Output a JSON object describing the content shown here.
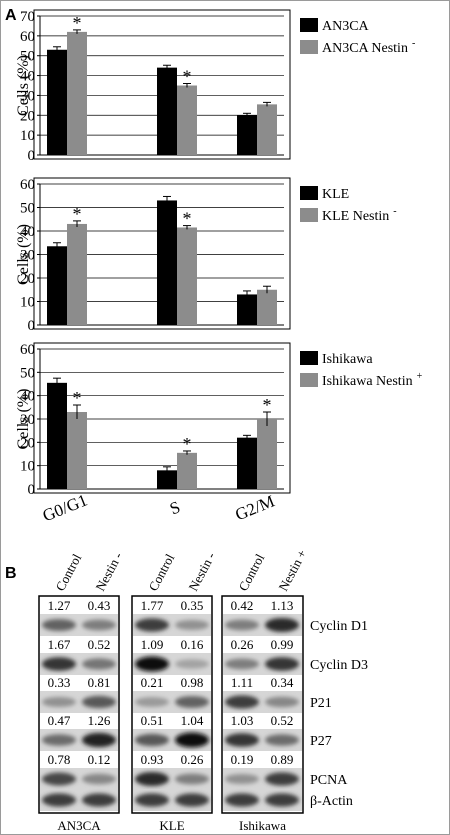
{
  "panel_labels": {
    "a": "A",
    "b": "B"
  },
  "colors": {
    "control": "#000000",
    "modified": "#8c8c8c",
    "band": "#3a3a3a",
    "grid": "#000000"
  },
  "chart_data": [
    {
      "type": "bar",
      "categories": [
        "G0/G1",
        "S",
        "G2/M"
      ],
      "ylabel": "Cells (%)",
      "ylim": [
        0,
        70
      ],
      "yticks": [
        0,
        10,
        20,
        30,
        40,
        50,
        60,
        70
      ],
      "grid": true,
      "legend": "right",
      "series": [
        {
          "name": "AN3CA",
          "values": [
            53,
            44,
            20
          ],
          "errors": [
            1.5,
            1.2,
            1.0
          ],
          "star": [
            false,
            false,
            false
          ]
        },
        {
          "name": "AN3CA Nestin",
          "sup": "-",
          "values": [
            62,
            35,
            25.5
          ],
          "errors": [
            1.0,
            1.0,
            1.0
          ],
          "star": [
            true,
            true,
            false
          ]
        }
      ]
    },
    {
      "type": "bar",
      "categories": [
        "G0/G1",
        "S",
        "G2/M"
      ],
      "ylabel": "Cells (%)",
      "ylim": [
        0,
        60
      ],
      "yticks": [
        0,
        10,
        20,
        30,
        40,
        50,
        60
      ],
      "grid": true,
      "legend": "right",
      "series": [
        {
          "name": "KLE",
          "values": [
            33.5,
            53,
            13
          ],
          "errors": [
            1.5,
            1.7,
            1.5
          ],
          "star": [
            false,
            false,
            false
          ]
        },
        {
          "name": "KLE Nestin",
          "sup": "-",
          "values": [
            43,
            41.5,
            15
          ],
          "errors": [
            1.3,
            0.8,
            1.5
          ],
          "star": [
            true,
            true,
            false
          ]
        }
      ]
    },
    {
      "type": "bar",
      "categories": [
        "G0/G1",
        "S",
        "G2/M"
      ],
      "ylabel": "Cells (%)",
      "ylim": [
        0,
        60
      ],
      "yticks": [
        0,
        10,
        20,
        30,
        40,
        50,
        60
      ],
      "grid": true,
      "legend": "right",
      "series": [
        {
          "name": "Ishikawa",
          "values": [
            45.5,
            8,
            22
          ],
          "errors": [
            2.0,
            1.5,
            1.0
          ],
          "star": [
            false,
            false,
            false
          ]
        },
        {
          "name": "Ishikawa Nestin",
          "sup": "+",
          "values": [
            33,
            15.5,
            30
          ],
          "errors": [
            3.0,
            0.8,
            3.0
          ],
          "star": [
            true,
            true,
            true
          ]
        }
      ]
    }
  ],
  "blot": {
    "columns": [
      "Control",
      "Nestin -",
      "Control",
      "Nestin -",
      "Control",
      "Nestin +"
    ],
    "cell_lines": [
      "AN3CA",
      "KLE",
      "Ishikawa"
    ],
    "proteins": [
      "Cyclin D1",
      "Cyclin D3",
      "P21",
      "P27",
      "PCNA",
      "β-Actin"
    ],
    "values": [
      [
        [
          "1.27",
          "0.43"
        ],
        [
          "1.77",
          "0.35"
        ],
        [
          "0.42",
          "1.13"
        ]
      ],
      [
        [
          "1.67",
          "0.52"
        ],
        [
          "1.09",
          "0.16"
        ],
        [
          "0.26",
          "0.99"
        ]
      ],
      [
        [
          "0.33",
          "0.81"
        ],
        [
          "0.21",
          "0.98"
        ],
        [
          "1.11",
          "0.34"
        ]
      ],
      [
        [
          "0.47",
          "1.26"
        ],
        [
          "0.51",
          "1.04"
        ],
        [
          "1.03",
          "0.52"
        ]
      ],
      [
        [
          "0.78",
          "0.12"
        ],
        [
          "0.93",
          "0.26"
        ],
        [
          "0.19",
          "0.89"
        ]
      ]
    ],
    "band_intensity": [
      [
        [
          0.55,
          0.4
        ],
        [
          0.75,
          0.3
        ],
        [
          0.4,
          0.85
        ]
      ],
      [
        [
          0.8,
          0.45
        ],
        [
          1.0,
          0.2
        ],
        [
          0.4,
          0.8
        ]
      ],
      [
        [
          0.3,
          0.6
        ],
        [
          0.25,
          0.55
        ],
        [
          0.75,
          0.35
        ]
      ],
      [
        [
          0.5,
          0.9
        ],
        [
          0.6,
          1.0
        ],
        [
          0.8,
          0.5
        ]
      ],
      [
        [
          0.7,
          0.35
        ],
        [
          0.85,
          0.4
        ],
        [
          0.3,
          0.75
        ]
      ],
      [
        [
          0.75,
          0.75
        ],
        [
          0.75,
          0.75
        ],
        [
          0.75,
          0.75
        ]
      ]
    ]
  }
}
